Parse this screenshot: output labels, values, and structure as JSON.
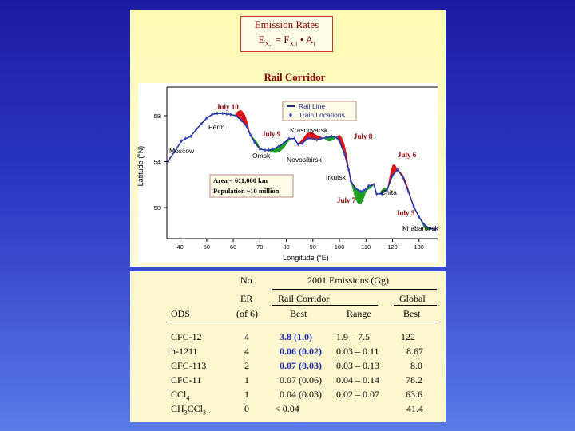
{
  "formula": {
    "title": "Emission Rates",
    "lhs_main": "E",
    "lhs_sub": "X,i",
    "rhs1_main": "F",
    "rhs1_sub": "X,i",
    "rhs2_main": "A",
    "rhs2_sub": "i",
    "eq": "=",
    "dot": "•"
  },
  "chart_data": {
    "type": "line",
    "title": "Rail Corridor",
    "xlabel": "Longitude (°E)",
    "ylabel": "Latitude (°N)",
    "xlim": [
      35,
      137
    ],
    "ylim": [
      47.3,
      60.5
    ],
    "xticks": [
      "40",
      "50",
      "60",
      "70",
      "80",
      "90",
      "100",
      "110",
      "120",
      "130"
    ],
    "yticks": [
      "58",
      "54",
      "50"
    ],
    "legend": {
      "placement": "top-center",
      "line_label": "Rail Line",
      "marker_label": "Train Locations"
    },
    "series": [
      {
        "name": "Rail Line",
        "x": [
          35,
          38,
          40.5,
          42,
          44,
          46,
          48,
          50,
          52,
          54,
          56,
          57.5,
          59,
          61,
          63,
          65,
          66.5,
          68,
          70,
          72,
          73.3,
          75,
          77,
          79,
          81,
          83,
          84.5,
          86,
          88,
          90,
          91.5,
          93,
          95,
          97,
          99,
          100,
          102,
          103.5,
          104.3,
          106,
          108,
          109,
          110,
          111,
          113,
          114,
          116,
          118,
          120,
          122,
          124,
          126,
          128,
          130,
          132,
          134,
          136
        ],
        "y": [
          53.9,
          54.9,
          55.8,
          56,
          56.2,
          56.8,
          57.3,
          57.8,
          58.1,
          58.2,
          58.2,
          58.15,
          58.1,
          58,
          57.6,
          57.1,
          56.3,
          55.7,
          55.1,
          55.0,
          55.0,
          55.1,
          55.3,
          55.6,
          56.0,
          56.0,
          55.5,
          55.6,
          56.0,
          56.0,
          55.9,
          56.0,
          56.1,
          56.2,
          56.1,
          55.8,
          54.6,
          53.3,
          52.3,
          51.7,
          51.4,
          51.5,
          51.6,
          51.9,
          52.0,
          51.2,
          51.2,
          51.6,
          52.8,
          53.3,
          52.6,
          51.4,
          50.1,
          49.2,
          48.5,
          48.2,
          48.1
        ]
      }
    ],
    "annotations": {
      "days": [
        "July 10",
        "July 9",
        "July 8",
        "July 6",
        "July 7",
        "July 5"
      ],
      "cities": [
        "Perm",
        "Krasnoyarsk",
        "Moscow",
        "Omsk",
        "Novosibirsk",
        "Irkutsk",
        "Chita",
        "Khabarovsk"
      ],
      "area_text": "Area = 611,000 km",
      "population_text": "Population ~10 million"
    },
    "fill_colors": {
      "red": "#e01414",
      "green": "#1da01d",
      "line": "#1e2c8f",
      "marker": "#3344cc"
    }
  },
  "table": {
    "hdr_no": "No.",
    "hdr_emissions": "2001 Emissions (Gg)",
    "hdr_er": "ER",
    "hdr_of6": "(of 6)",
    "hdr_rail": "Rail Corridor",
    "hdr_global": "Global",
    "hdr_ods": "ODS",
    "hdr_best": "Best",
    "hdr_range": "Range",
    "hdr_gbest": "Best",
    "rows": [
      {
        "ods": "CFC-12",
        "no": "4",
        "best": "3.8   (1.0)",
        "range": "1.9   – 7.5",
        "global": "122",
        "bold": true
      },
      {
        "ods": "h-1211",
        "no": "4",
        "best": "0.06 (0.02)",
        "range": "0.03 – 0.11",
        "global": "8.67",
        "bold": true
      },
      {
        "ods": "CFC-113",
        "no": "2",
        "best": "0.07 (0.03)",
        "range": "0.03 – 0.13",
        "global": "8.0",
        "bold": true
      },
      {
        "ods": "CFC-11",
        "no": "1",
        "best": "0.07 (0.06)",
        "range": "0.04 – 0.14",
        "global": "78.2",
        "bold": false
      },
      {
        "ods_main": "CCl",
        "ods_sub": "4",
        "no": "1",
        "best": "0.04 (0.03)",
        "range": "0.02 – 0.07",
        "global": "63.6",
        "bold": false
      },
      {
        "ods_a": "CH",
        "ods_s1": "3",
        "ods_b": "CCl",
        "ods_s2": "3",
        "no": "0",
        "best": "< 0.04",
        "range": "",
        "global": "41.4",
        "bold": false
      }
    ]
  }
}
